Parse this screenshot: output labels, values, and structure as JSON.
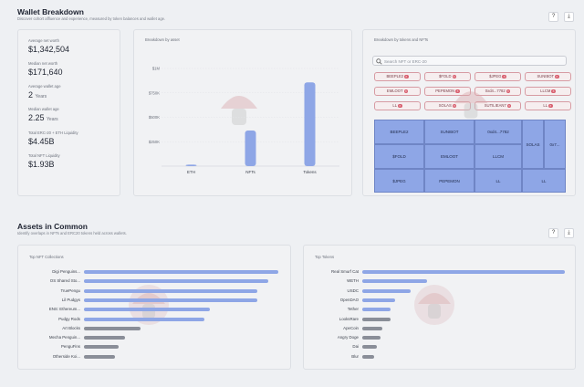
{
  "header": {
    "title": "Wallet Breakdown",
    "subtitle": "Discover cohort affluence and experience, measured by token balances and wallet age.",
    "help_icon": "question-icon",
    "download_icon": "download-icon",
    "help_label": "?",
    "download_label": "⤓"
  },
  "stats": {
    "avg_net_worth_label": "Average net worth",
    "avg_net_worth_value": "$1,342,504",
    "median_net_worth_label": "Median net worth",
    "median_net_worth_value": "$171,640",
    "avg_wallet_age_label": "Average wallet age",
    "avg_wallet_age_value": "2",
    "avg_wallet_age_unit": "Years",
    "median_wallet_age_label": "Median wallet age",
    "median_wallet_age_value": "2.25",
    "median_wallet_age_unit": "Years",
    "erc20_liquidity_label": "Total ERC-20 + ETH Liquidity",
    "erc20_liquidity_value": "$4.45B",
    "nft_liquidity_label": "Total NFT Liquidity",
    "nft_liquidity_value": "$1.93B"
  },
  "asset_breakdown": {
    "title": "Breakdown by asset"
  },
  "token_breakdown": {
    "title": "Breakdown by tokens and NFTs",
    "search_placeholder": "Search NFT or ERC-20",
    "chips": [
      "BEEPLE2",
      "$FOLD",
      "$JPEG",
      "SUNIBOT",
      "EMLOOT",
      "PEPEMON",
      "0xd4...7782",
      "LLCM",
      "LL",
      "SOLAS",
      "SUTILIEAN7",
      "LL"
    ],
    "tiles": [
      "BEEPLE2",
      "SUNIBOT",
      "0xd4...7782",
      "$FOLD",
      "EMLOOT",
      "LLCM",
      "SOLAS",
      "0x7...",
      "$JPEG",
      "PEPEMON",
      "LL",
      "LL"
    ]
  },
  "assets_common": {
    "title": "Assets in Common",
    "subtitle": "Identify overlaps in NFTs and ERC20 tokens held across wallets."
  },
  "top_nft": {
    "title": "Top NFT Collections"
  },
  "top_tokens": {
    "title": "Top Tokens"
  },
  "chart_data": [
    {
      "type": "bar",
      "title": "Breakdown by asset",
      "categories": [
        "ETH",
        "NFTs",
        "Tokens"
      ],
      "values": [
        6,
        146,
        343
      ],
      "yticks": [
        "$1M",
        "$750K",
        "$500K",
        "$250K"
      ],
      "ytick_values": [
        400,
        300,
        200,
        100
      ],
      "ylim": [
        0,
        400
      ],
      "colors": [
        "#8ea6e6",
        "#8ea6e6",
        "#8ea6e6"
      ]
    },
    {
      "type": "bar",
      "orientation": "horizontal",
      "title": "Top NFT Collections",
      "categories": [
        "Digi Penguins...",
        "OS Shared Sto...",
        "TruePengu",
        "Lil Pudgys",
        "ENS: Ethereum...",
        "Pudgy Rods",
        "Art Blocks",
        "Mecha Penguin...",
        "PenguFins",
        "Otherside Koi..."
      ],
      "values": [
        100,
        95,
        89,
        89,
        65,
        62,
        29,
        21,
        18,
        16
      ],
      "colors": [
        "#8ea6e6",
        "#8ea6e6",
        "#8ea6e6",
        "#8ea6e6",
        "#8ea6e6",
        "#8ea6e6",
        "#8a8e98",
        "#8a8e98",
        "#8a8e98",
        "#8a8e98"
      ]
    },
    {
      "type": "bar",
      "orientation": "horizontal",
      "title": "Top Tokens",
      "categories": [
        "Real Smurf Cat",
        "WETH",
        "USDC",
        "OpenDAO",
        "Tether",
        "LooksRare",
        "ApeCoin",
        "Angry Doge",
        "Dai",
        "Blur"
      ],
      "values": [
        100,
        32,
        24,
        16,
        14,
        14,
        10,
        9,
        7,
        6
      ],
      "colors": [
        "#8ea6e6",
        "#8ea6e6",
        "#8ea6e6",
        "#8ea6e6",
        "#8ea6e6",
        "#8a8e98",
        "#8a8e98",
        "#8a8e98",
        "#8a8e98",
        "#8a8e98"
      ]
    }
  ]
}
